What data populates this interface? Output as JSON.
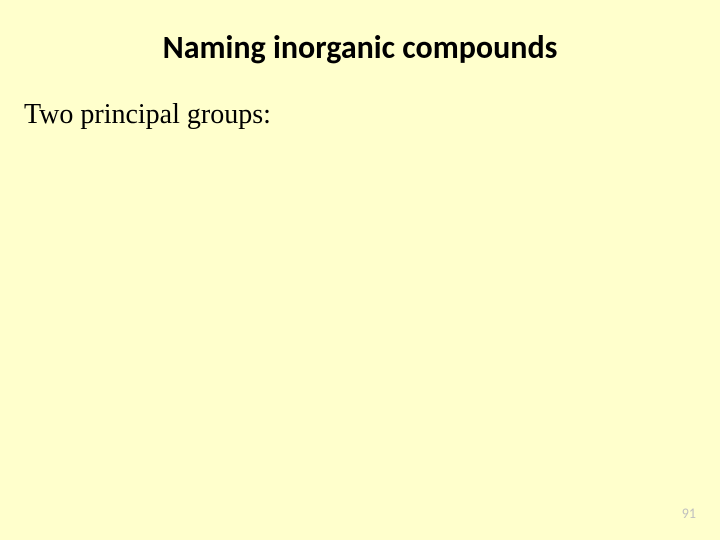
{
  "slide": {
    "title": "Naming inorganic compounds",
    "body_text": "Two principal groups:",
    "page_number": "91",
    "background_color": "#ffffcc",
    "title_fontsize": 32,
    "title_fontweight": "bold",
    "title_color": "#000000",
    "body_fontsize": 28,
    "body_color": "#000000",
    "page_number_color": "#bfbfbf",
    "page_number_fontsize": 14
  }
}
